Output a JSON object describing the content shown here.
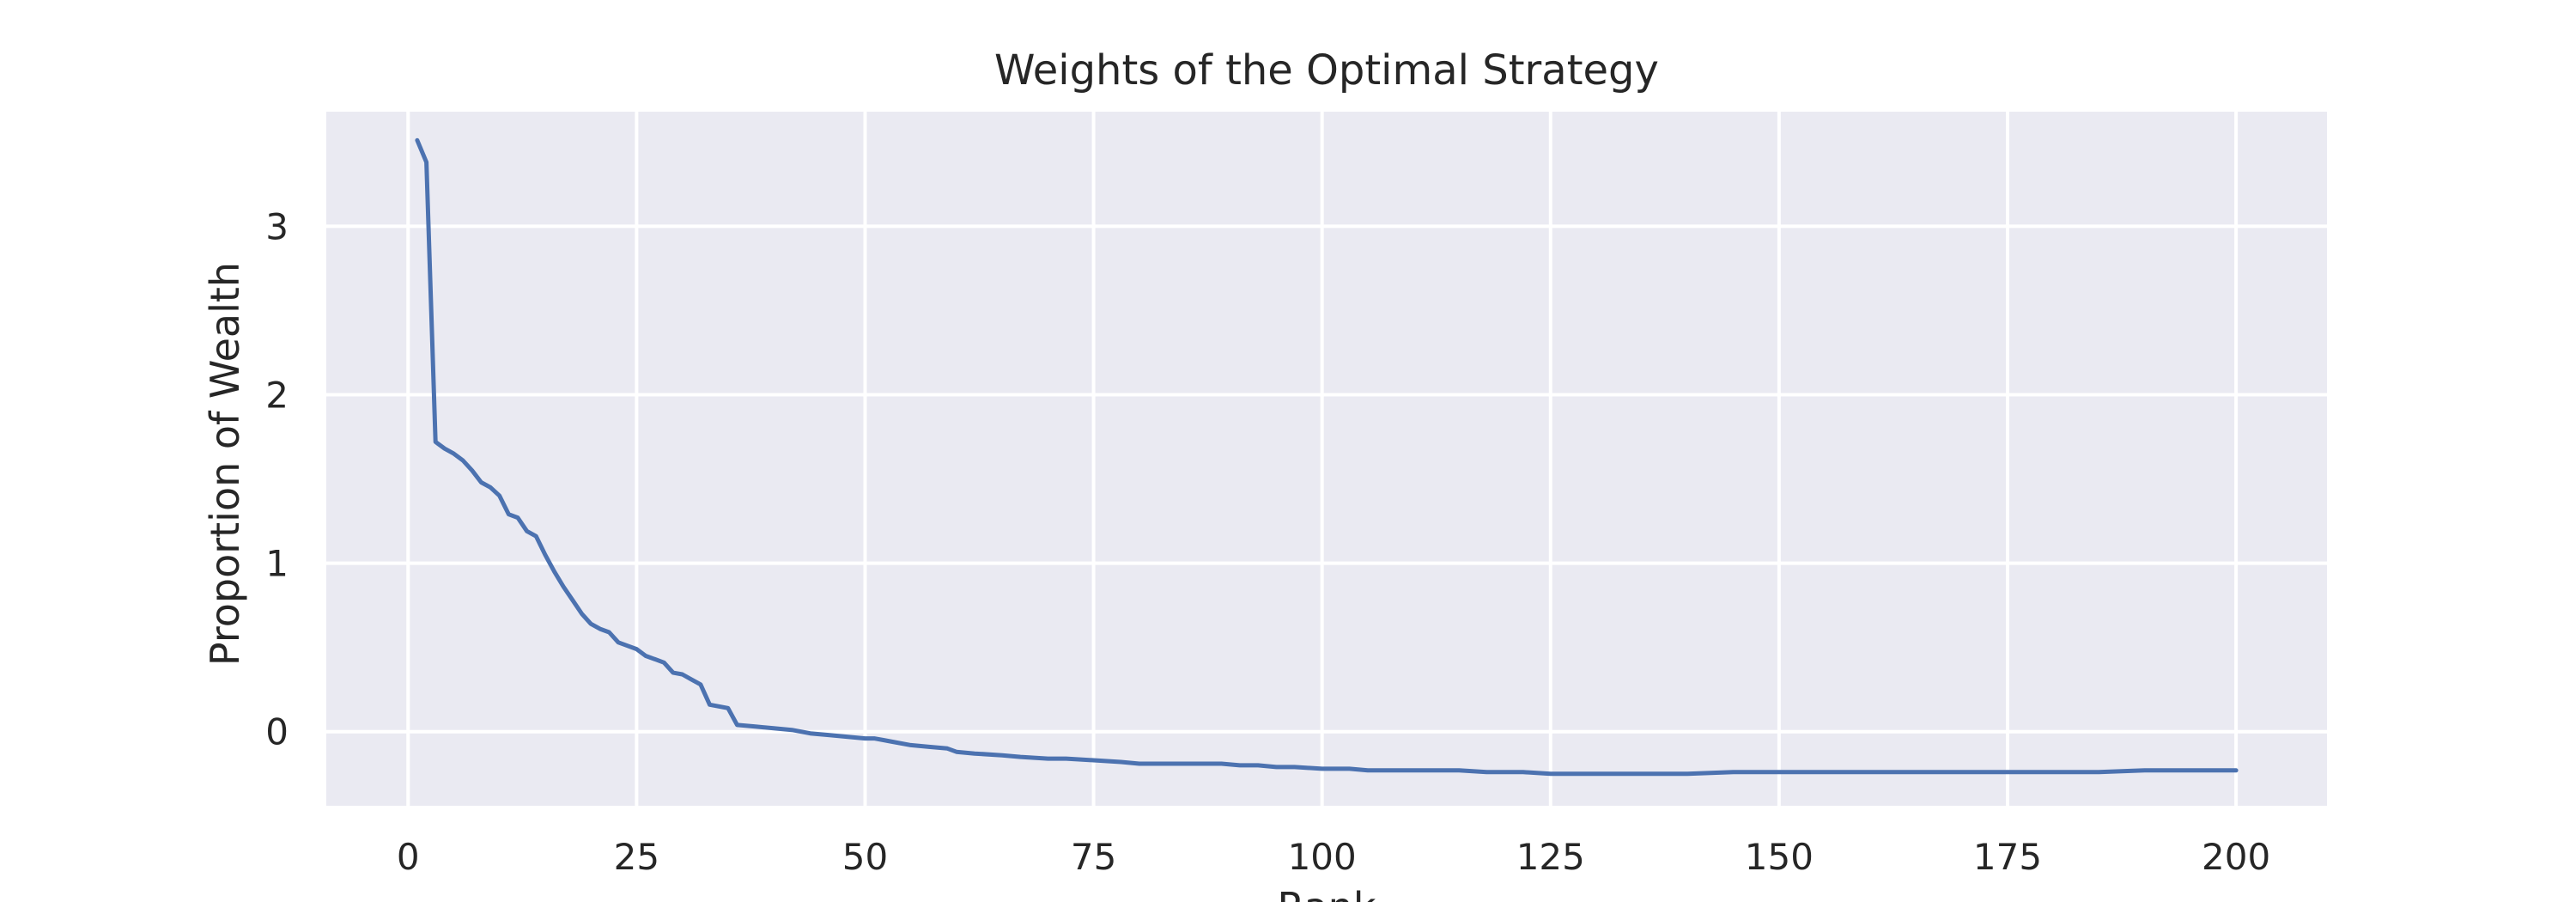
{
  "chart_data": {
    "type": "line",
    "title": "Weights of the Optimal Strategy",
    "xlabel": "Rank",
    "ylabel": "Proportion of Wealth",
    "xlim": [
      -8.95,
      209.95
    ],
    "ylim": [
      -0.44,
      3.68
    ],
    "x_ticks": [
      0,
      25,
      50,
      75,
      100,
      125,
      150,
      175,
      200
    ],
    "y_ticks": [
      0,
      1,
      2,
      3
    ],
    "grid": true,
    "legend": "none",
    "colors": {
      "line": "#4c72b0",
      "plot_background": "#eaeaf2",
      "grid": "#ffffff",
      "text": "#262626"
    },
    "series": [
      {
        "points": [
          [
            1,
            3.51
          ],
          [
            2,
            3.38
          ],
          [
            3,
            1.72
          ],
          [
            4,
            1.68
          ],
          [
            5,
            1.65
          ],
          [
            6,
            1.61
          ],
          [
            7,
            1.55
          ],
          [
            8,
            1.48
          ],
          [
            9,
            1.45
          ],
          [
            10,
            1.4
          ],
          [
            11,
            1.29
          ],
          [
            12,
            1.27
          ],
          [
            13,
            1.19
          ],
          [
            14,
            1.16
          ],
          [
            15,
            1.05
          ],
          [
            16,
            0.95
          ],
          [
            17,
            0.86
          ],
          [
            18,
            0.78
          ],
          [
            19,
            0.7
          ],
          [
            20,
            0.64
          ],
          [
            21,
            0.61
          ],
          [
            22,
            0.59
          ],
          [
            23,
            0.53
          ],
          [
            24,
            0.51
          ],
          [
            25,
            0.49
          ],
          [
            26,
            0.45
          ],
          [
            27,
            0.43
          ],
          [
            28,
            0.41
          ],
          [
            29,
            0.35
          ],
          [
            30,
            0.34
          ],
          [
            31,
            0.31
          ],
          [
            32,
            0.28
          ],
          [
            33,
            0.16
          ],
          [
            34,
            0.15
          ],
          [
            35,
            0.14
          ],
          [
            36,
            0.04
          ],
          [
            38,
            0.03
          ],
          [
            40,
            0.02
          ],
          [
            42,
            0.01
          ],
          [
            44,
            -0.01
          ],
          [
            46,
            -0.02
          ],
          [
            48,
            -0.03
          ],
          [
            50,
            -0.04
          ],
          [
            51,
            -0.04
          ],
          [
            52,
            -0.05
          ],
          [
            53,
            -0.06
          ],
          [
            55,
            -0.08
          ],
          [
            57,
            -0.09
          ],
          [
            59,
            -0.1
          ],
          [
            60,
            -0.12
          ],
          [
            62,
            -0.13
          ],
          [
            65,
            -0.14
          ],
          [
            67,
            -0.15
          ],
          [
            70,
            -0.16
          ],
          [
            72,
            -0.16
          ],
          [
            75,
            -0.17
          ],
          [
            78,
            -0.18
          ],
          [
            80,
            -0.19
          ],
          [
            83,
            -0.19
          ],
          [
            86,
            -0.19
          ],
          [
            89,
            -0.19
          ],
          [
            91,
            -0.2
          ],
          [
            93,
            -0.2
          ],
          [
            95,
            -0.21
          ],
          [
            97,
            -0.21
          ],
          [
            100,
            -0.22
          ],
          [
            103,
            -0.22
          ],
          [
            105,
            -0.23
          ],
          [
            110,
            -0.23
          ],
          [
            115,
            -0.23
          ],
          [
            118,
            -0.24
          ],
          [
            122,
            -0.24
          ],
          [
            125,
            -0.25
          ],
          [
            130,
            -0.25
          ],
          [
            135,
            -0.25
          ],
          [
            140,
            -0.25
          ],
          [
            145,
            -0.24
          ],
          [
            150,
            -0.24
          ],
          [
            155,
            -0.24
          ],
          [
            160,
            -0.24
          ],
          [
            165,
            -0.24
          ],
          [
            170,
            -0.24
          ],
          [
            175,
            -0.24
          ],
          [
            180,
            -0.24
          ],
          [
            185,
            -0.24
          ],
          [
            190,
            -0.23
          ],
          [
            195,
            -0.23
          ],
          [
            200,
            -0.23
          ]
        ]
      }
    ]
  }
}
